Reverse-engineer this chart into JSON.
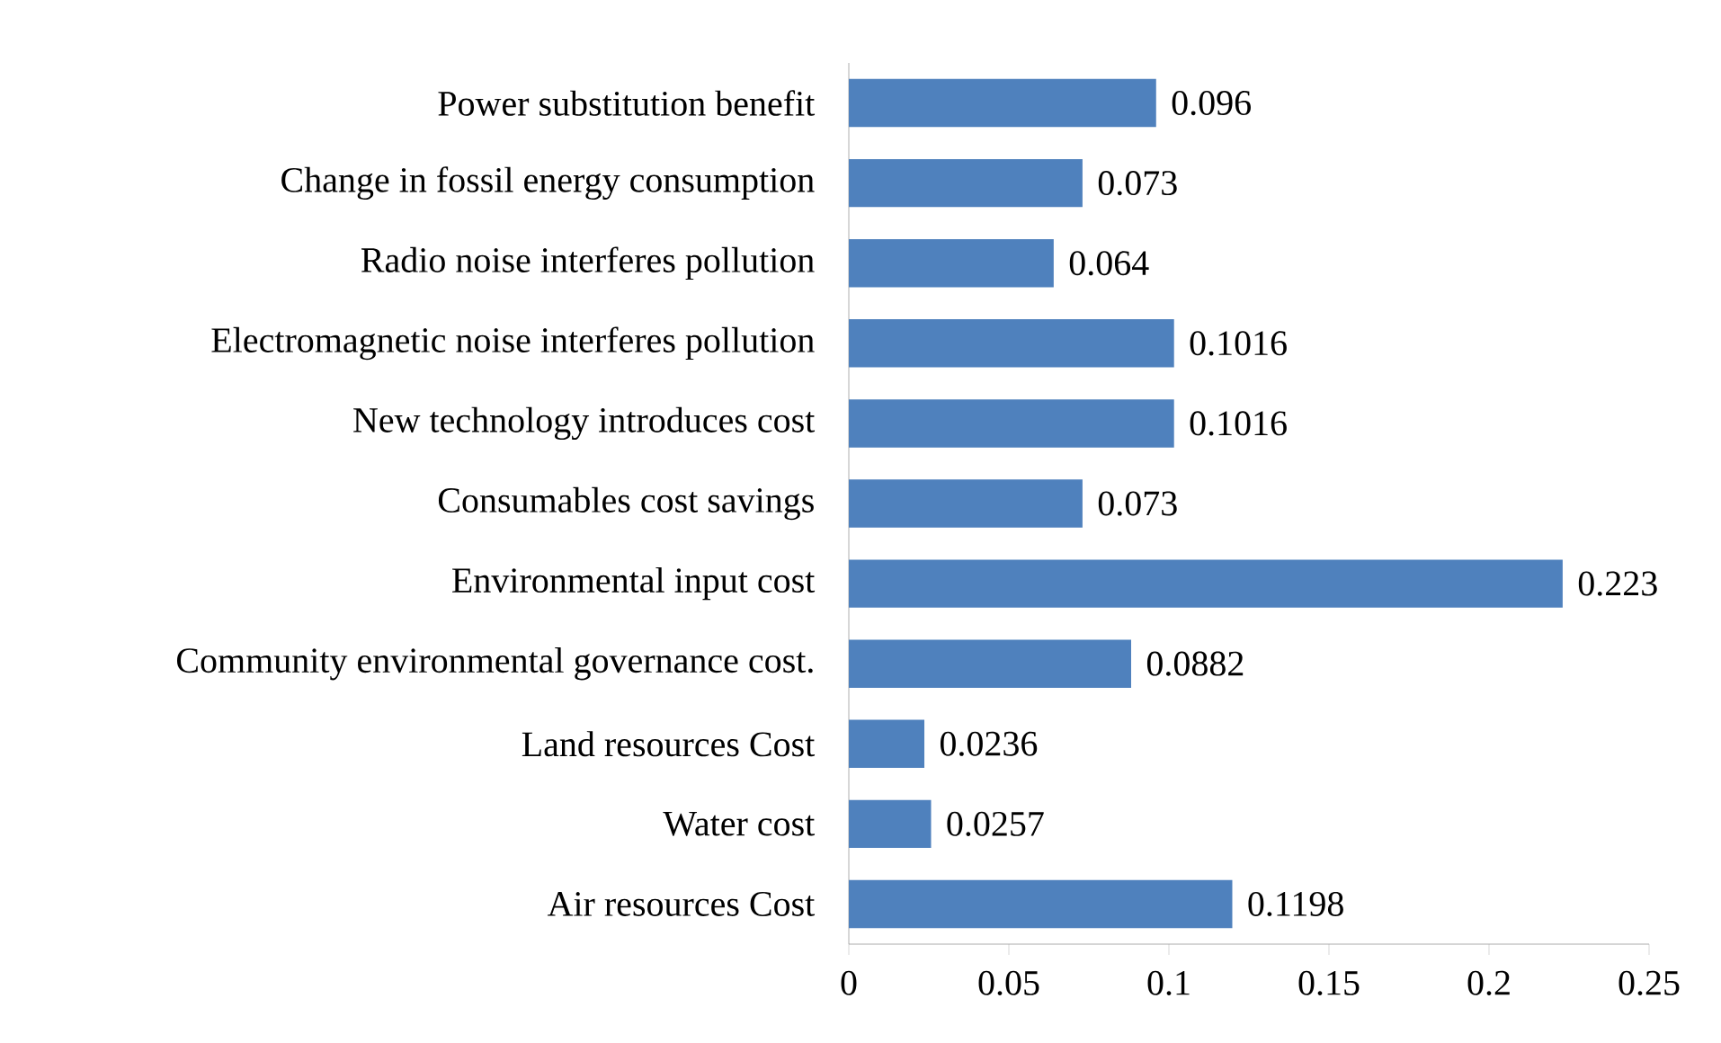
{
  "chart_data": {
    "type": "bar",
    "orientation": "horizontal",
    "categories": [
      "Power substitution benefit",
      "Change in fossil energy consumption",
      "Radio noise interferes pollution",
      "Electromagnetic noise interferes pollution",
      "New technology introduces cost",
      "Consumables cost savings",
      "Environmental input cost",
      "Community environmental governance cost.",
      "Land resources Cost",
      "Water cost",
      "Air resources Cost"
    ],
    "values": [
      0.096,
      0.073,
      0.064,
      0.1016,
      0.1016,
      0.073,
      0.223,
      0.0882,
      0.0236,
      0.0257,
      0.1198
    ],
    "color": "#4f81bd",
    "xlim": [
      0,
      0.25
    ],
    "xticks": [
      0,
      0.05,
      0.1,
      0.15,
      0.2,
      0.25
    ],
    "data_labels": true
  }
}
